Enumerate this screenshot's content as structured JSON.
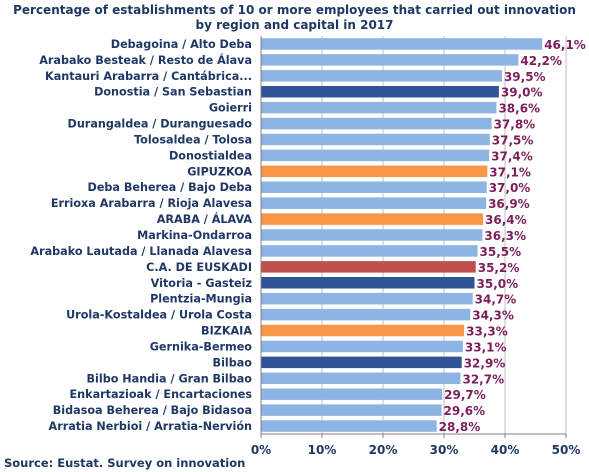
{
  "chart_data": {
    "type": "bar",
    "orientation": "horizontal",
    "title": "Percentage of establishments of 10 or more employees that carried out innovation by region and capital in 2017",
    "source": "Source: Eustat. Survey on innovation",
    "xlim": [
      0,
      50
    ],
    "x_ticks": [
      "0%",
      "10%",
      "20%",
      "30%",
      "40%",
      "50%"
    ],
    "grid": "vertical",
    "categories": [
      "Debagoina  /  Alto Deba",
      "Arabako Besteak / Resto de Álava",
      "Kantauri Arabarra  /  Cantábrica...",
      "Donostia / San Sebastian",
      "Goierri",
      "Durangaldea  /  Duranguesado",
      "Tolosaldea  /  Tolosa",
      "Donostialdea",
      "GIPUZKOA",
      "Deba Beherea  /  Bajo Deba",
      "Errioxa Arabarra  /  Rioja Alavesa",
      "ARABA / ÁLAVA",
      "Markina-Ondarroa",
      "Arabako Lautada  /  Llanada Alavesa",
      "C.A. DE EUSKADI",
      "Vitoria - Gasteiz",
      "Plentzia-Mungia",
      "Urola-Kostaldea  /  Urola Costa",
      "BIZKAIA",
      "Gernika-Bermeo",
      "Bilbao",
      "Bilbo Handia  /  Gran Bilbao",
      "Enkartazioak  /  Encartaciones",
      "Bidasoa Beherea  /  Bajo Bidasoa",
      "Arratia Nerbioi  /  Arratia-Nervión"
    ],
    "values": [
      46.1,
      42.2,
      39.5,
      39.0,
      38.6,
      37.8,
      37.5,
      37.4,
      37.1,
      37.0,
      36.9,
      36.4,
      36.3,
      35.5,
      35.2,
      35.0,
      34.7,
      34.3,
      33.3,
      33.1,
      32.9,
      32.7,
      29.7,
      29.6,
      28.8
    ],
    "value_labels": [
      "46,1%",
      "42,2%",
      "39,5%",
      "39,0%",
      "38,6%",
      "37,8%",
      "37,5%",
      "37,4%",
      "37,1%",
      "37,0%",
      "36,9%",
      "36,4%",
      "36,3%",
      "35,5%",
      "35,2%",
      "35,0%",
      "34,7%",
      "34,3%",
      "33,3%",
      "33,1%",
      "32,9%",
      "32,7%",
      "29,7%",
      "29,6%",
      "28,8%"
    ],
    "bar_kinds": [
      "region",
      "region",
      "region",
      "capital",
      "region",
      "region",
      "region",
      "region",
      "province",
      "region",
      "region",
      "province",
      "region",
      "region",
      "total",
      "capital",
      "region",
      "region",
      "province",
      "region",
      "capital",
      "region",
      "region",
      "region",
      "region"
    ],
    "colors": {
      "region": "#8db4e2",
      "capital": "#2f5597",
      "province": "#f79646",
      "total": "#c0504d",
      "grid": "#bfbfbf",
      "axis": "#808080",
      "text": "#1f3864",
      "value_text": "#7b1f5a"
    }
  }
}
